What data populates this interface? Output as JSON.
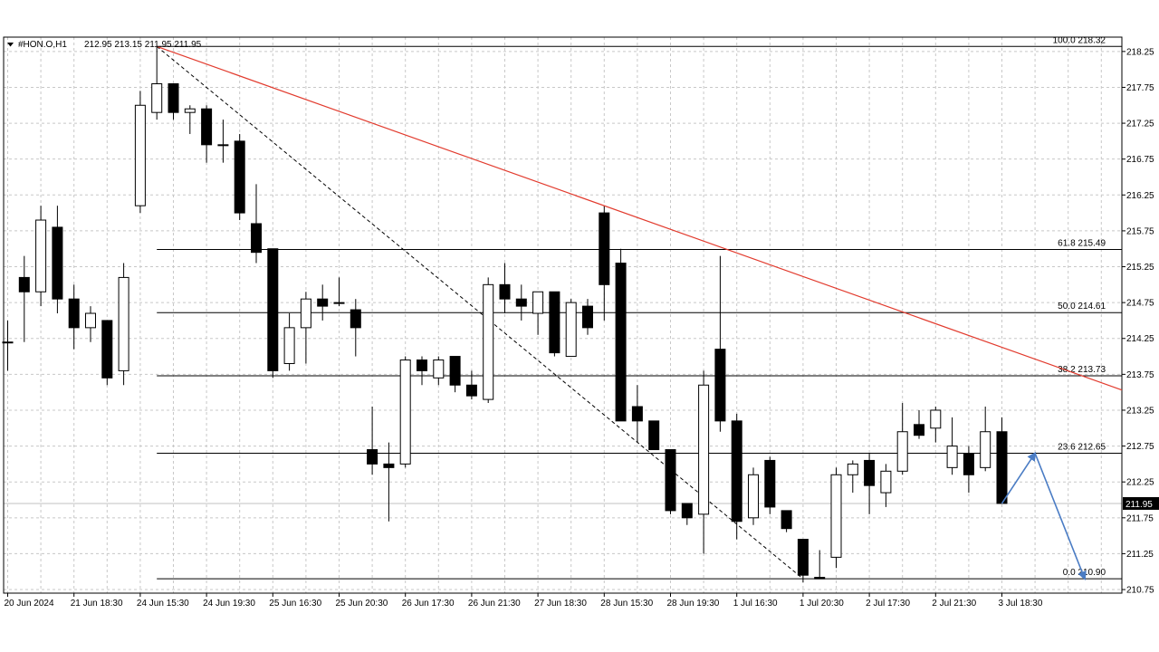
{
  "header": {
    "symbol": "#HON.O,H1",
    "ohlc": "212.95 213.15 211.95 211.95"
  },
  "colors": {
    "background": "#ffffff",
    "grid": "#c8c8c8",
    "bull_fill": "#ffffff",
    "bear_fill": "#000000",
    "candle_outline": "#000000",
    "fib_line": "#000000",
    "trendline": "#e23b2e",
    "arrow": "#4a7cc4",
    "price_line": "#c0c0c0"
  },
  "chart_data": {
    "type": "candlestick",
    "ylim": [
      210.7,
      218.45
    ],
    "y_ticks": [
      "218.25",
      "217.75",
      "217.25",
      "216.75",
      "216.25",
      "215.75",
      "215.25",
      "214.75",
      "214.25",
      "213.75",
      "213.25",
      "212.75",
      "212.25",
      "211.75",
      "211.25",
      "210.75"
    ],
    "x_labels": [
      "20 Jun 2024",
      "21 Jun 18:30",
      "24 Jun 15:30",
      "24 Jun 19:30",
      "25 Jun 16:30",
      "25 Jun 20:30",
      "26 Jun 17:30",
      "26 Jun 21:30",
      "27 Jun 18:30",
      "28 Jun 15:30",
      "28 Jun 19:30",
      "1 Jul 16:30",
      "1 Jul 20:30",
      "2 Jul 17:30",
      "2 Jul 21:30",
      "3 Jul 18:30"
    ],
    "x_label_bars": [
      0,
      4,
      8,
      12,
      16,
      20,
      24,
      28,
      32,
      36,
      40,
      44,
      48,
      52,
      56,
      60
    ],
    "current_price": "211.95",
    "candles": [
      {
        "o": 214.2,
        "h": 214.5,
        "l": 213.8,
        "c": 214.2
      },
      {
        "o": 215.1,
        "h": 215.4,
        "l": 214.2,
        "c": 214.9
      },
      {
        "o": 214.9,
        "h": 216.1,
        "l": 214.7,
        "c": 215.9
      },
      {
        "o": 215.8,
        "h": 216.1,
        "l": 214.6,
        "c": 214.8
      },
      {
        "o": 214.8,
        "h": 215.0,
        "l": 214.1,
        "c": 214.4
      },
      {
        "o": 214.4,
        "h": 214.7,
        "l": 214.2,
        "c": 214.6
      },
      {
        "o": 214.5,
        "h": 214.5,
        "l": 213.6,
        "c": 213.7
      },
      {
        "o": 213.8,
        "h": 215.3,
        "l": 213.6,
        "c": 215.1
      },
      {
        "o": 216.1,
        "h": 217.7,
        "l": 216.0,
        "c": 217.5
      },
      {
        "o": 217.4,
        "h": 218.32,
        "l": 217.3,
        "c": 217.8
      },
      {
        "o": 217.8,
        "h": 217.8,
        "l": 217.3,
        "c": 217.4
      },
      {
        "o": 217.4,
        "h": 217.5,
        "l": 217.1,
        "c": 217.45
      },
      {
        "o": 217.45,
        "h": 217.5,
        "l": 216.7,
        "c": 216.95
      },
      {
        "o": 216.95,
        "h": 217.3,
        "l": 216.7,
        "c": 216.95
      },
      {
        "o": 217.0,
        "h": 217.1,
        "l": 215.9,
        "c": 216.0
      },
      {
        "o": 215.85,
        "h": 216.4,
        "l": 215.3,
        "c": 215.45
      },
      {
        "o": 215.5,
        "h": 215.5,
        "l": 213.7,
        "c": 213.8
      },
      {
        "o": 213.9,
        "h": 214.6,
        "l": 213.8,
        "c": 214.4
      },
      {
        "o": 214.4,
        "h": 214.9,
        "l": 213.9,
        "c": 214.8
      },
      {
        "o": 214.8,
        "h": 215.0,
        "l": 214.5,
        "c": 214.7
      },
      {
        "o": 214.75,
        "h": 215.1,
        "l": 214.7,
        "c": 214.75
      },
      {
        "o": 214.65,
        "h": 214.8,
        "l": 214.0,
        "c": 214.4
      },
      {
        "o": 212.7,
        "h": 213.3,
        "l": 212.35,
        "c": 212.5
      },
      {
        "o": 212.5,
        "h": 212.8,
        "l": 211.7,
        "c": 212.45
      },
      {
        "o": 212.5,
        "h": 214.0,
        "l": 212.45,
        "c": 213.95
      },
      {
        "o": 213.95,
        "h": 214.0,
        "l": 213.6,
        "c": 213.8
      },
      {
        "o": 213.7,
        "h": 214.0,
        "l": 213.6,
        "c": 213.95
      },
      {
        "o": 214.0,
        "h": 214.0,
        "l": 213.5,
        "c": 213.6
      },
      {
        "o": 213.6,
        "h": 213.8,
        "l": 213.4,
        "c": 213.45
      },
      {
        "o": 213.4,
        "h": 215.1,
        "l": 213.35,
        "c": 215.0
      },
      {
        "o": 215.0,
        "h": 215.3,
        "l": 214.6,
        "c": 214.8
      },
      {
        "o": 214.8,
        "h": 215.0,
        "l": 214.5,
        "c": 214.7
      },
      {
        "o": 214.6,
        "h": 214.9,
        "l": 214.3,
        "c": 214.9
      },
      {
        "o": 214.9,
        "h": 214.9,
        "l": 214.0,
        "c": 214.05
      },
      {
        "o": 214.0,
        "h": 214.8,
        "l": 214.0,
        "c": 214.75
      },
      {
        "o": 214.7,
        "h": 214.8,
        "l": 214.3,
        "c": 214.4
      },
      {
        "o": 216.0,
        "h": 216.1,
        "l": 214.5,
        "c": 215.0
      },
      {
        "o": 215.3,
        "h": 215.5,
        "l": 213.1,
        "c": 213.1
      },
      {
        "o": 213.3,
        "h": 213.6,
        "l": 212.8,
        "c": 213.1
      },
      {
        "o": 213.1,
        "h": 213.1,
        "l": 212.7,
        "c": 212.7
      },
      {
        "o": 212.7,
        "h": 212.7,
        "l": 211.8,
        "c": 211.85
      },
      {
        "o": 211.95,
        "h": 211.95,
        "l": 211.65,
        "c": 211.75
      },
      {
        "o": 211.8,
        "h": 213.8,
        "l": 211.25,
        "c": 213.6
      },
      {
        "o": 214.1,
        "h": 215.4,
        "l": 212.95,
        "c": 213.1
      },
      {
        "o": 213.1,
        "h": 213.2,
        "l": 211.45,
        "c": 211.7
      },
      {
        "o": 211.75,
        "h": 212.45,
        "l": 211.65,
        "c": 212.35
      },
      {
        "o": 212.55,
        "h": 212.6,
        "l": 211.8,
        "c": 211.9
      },
      {
        "o": 211.85,
        "h": 211.85,
        "l": 211.55,
        "c": 211.6
      },
      {
        "o": 211.45,
        "h": 211.45,
        "l": 210.85,
        "c": 210.95
      },
      {
        "o": 210.92,
        "h": 211.3,
        "l": 210.9,
        "c": 210.9
      },
      {
        "o": 211.2,
        "h": 212.45,
        "l": 211.05,
        "c": 212.35
      },
      {
        "o": 212.35,
        "h": 212.55,
        "l": 212.1,
        "c": 212.5
      },
      {
        "o": 212.55,
        "h": 212.65,
        "l": 211.8,
        "c": 212.2
      },
      {
        "o": 212.1,
        "h": 212.5,
        "l": 211.9,
        "c": 212.4
      },
      {
        "o": 212.4,
        "h": 213.35,
        "l": 212.35,
        "c": 212.95
      },
      {
        "o": 213.05,
        "h": 213.25,
        "l": 212.85,
        "c": 212.9
      },
      {
        "o": 213.0,
        "h": 213.3,
        "l": 212.8,
        "c": 213.25
      },
      {
        "o": 212.45,
        "h": 213.15,
        "l": 212.35,
        "c": 212.75
      },
      {
        "o": 212.65,
        "h": 212.75,
        "l": 212.1,
        "c": 212.35
      },
      {
        "o": 212.45,
        "h": 213.3,
        "l": 212.4,
        "c": 212.95
      },
      {
        "o": 212.95,
        "h": 213.15,
        "l": 211.95,
        "c": 211.95
      }
    ],
    "fib_levels": [
      {
        "pct": "100.0",
        "price": "218.32",
        "value": 218.32
      },
      {
        "pct": "61.8",
        "price": "215.49",
        "value": 215.49
      },
      {
        "pct": "50.0",
        "price": "214.61",
        "value": 214.61
      },
      {
        "pct": "38.2",
        "price": "213.73",
        "value": 213.73
      },
      {
        "pct": "23.6",
        "price": "212.65",
        "value": 212.65
      },
      {
        "pct": "0.0",
        "price": "210.90",
        "value": 210.9
      }
    ],
    "fib_anchor": {
      "start_bar": 9,
      "start_price": 218.32,
      "end_bar": 48,
      "end_price": 210.9
    },
    "trendline": {
      "start_bar": 9,
      "start_price": 218.32,
      "end_bar": 36,
      "end_price": 216.1
    },
    "projection_arrow": [
      {
        "bar": 60,
        "price": 211.95
      },
      {
        "bar": 62,
        "price": 212.65
      },
      {
        "bar": 65,
        "price": 210.9
      }
    ]
  }
}
